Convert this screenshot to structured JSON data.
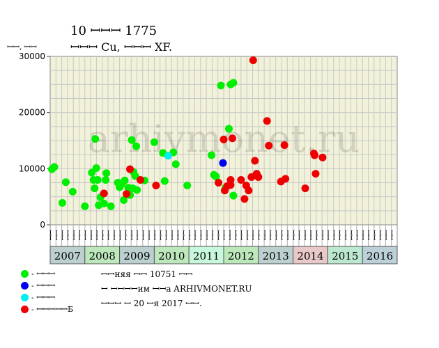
{
  "header": {
    "title_line1": "10 ꟷꟷꟷ 1775",
    "title_line2": "ꟷꟷꟷ Cu, ꟷꟷꟷ XF."
  },
  "y_unit": "ꟷꟷ, ꟷꟷ",
  "watermark": "arhivmonet.ru",
  "legend": [
    {
      "label": "- ꟷꟷꟷ",
      "color": "#00ee00"
    },
    {
      "label": "- ꟷꟷꟷ",
      "color": "#0000ee"
    },
    {
      "label": "- ꟷꟷꟷ",
      "color": "#00eeee"
    },
    {
      "label": "- ꟷꟷꟷꟷꟷБ",
      "color": "#ee0000"
    }
  ],
  "notes": [
    "ꟷꟷняя ꟷꟷ 10751 ꟷꟷ",
    "ꟷ ꟷꟷꟷꟷим ꟷꟷа ARHIVMONET.RU",
    "ꟷꟷꟷ ꟷ 20 ꟷя 2017 ꟷꟷ."
  ],
  "chart_data": {
    "type": "scatter",
    "ylim": [
      0,
      30000
    ],
    "yticks": [
      0,
      10000,
      20000,
      30000
    ],
    "xlim": [
      2007.0,
      2017.0
    ],
    "grid": true,
    "x_unit": "year",
    "years": [
      {
        "label": "2007",
        "color": "#bcd0d0"
      },
      {
        "label": "2008",
        "color": "#bce8bc"
      },
      {
        "label": "2009",
        "color": "#bcd0d0"
      },
      {
        "label": "2010",
        "color": "#bce8bc"
      },
      {
        "label": "2011",
        "color": "#c8f8dc"
      },
      {
        "label": "2012",
        "color": "#bce8bc"
      },
      {
        "label": "2013",
        "color": "#bcd0d0"
      },
      {
        "label": "2014",
        "color": "#e8c8c8"
      },
      {
        "label": "2015",
        "color": "#bce8d0"
      },
      {
        "label": "2016",
        "color": "#bcd0d8"
      }
    ],
    "month_labels": [
      "ꟷꟷ",
      "ꟷꟷ",
      "ꟷꟷ",
      "ꟷꟷ",
      "ꟷꟷ",
      "ꟷꟷ"
    ],
    "series": [
      {
        "name": "- ꟷꟷꟷ",
        "color": "#00ee00",
        "points": [
          [
            2007.05,
            9900
          ],
          [
            2007.12,
            10300
          ],
          [
            2007.35,
            3900
          ],
          [
            2007.45,
            7600
          ],
          [
            2007.65,
            5900
          ],
          [
            2008.0,
            3300
          ],
          [
            2008.2,
            9300
          ],
          [
            2008.25,
            8000
          ],
          [
            2008.28,
            6500
          ],
          [
            2008.3,
            15300
          ],
          [
            2008.33,
            10100
          ],
          [
            2008.37,
            8000
          ],
          [
            2008.4,
            3500
          ],
          [
            2008.45,
            4900
          ],
          [
            2008.55,
            3800
          ],
          [
            2008.6,
            8000
          ],
          [
            2008.62,
            9200
          ],
          [
            2008.75,
            3300
          ],
          [
            2008.95,
            7500
          ],
          [
            2009.0,
            6700
          ],
          [
            2009.05,
            7200
          ],
          [
            2009.12,
            4400
          ],
          [
            2009.15,
            7900
          ],
          [
            2009.25,
            6600
          ],
          [
            2009.3,
            5300
          ],
          [
            2009.35,
            15100
          ],
          [
            2009.38,
            6500
          ],
          [
            2009.4,
            9400
          ],
          [
            2009.45,
            8700
          ],
          [
            2009.48,
            14000
          ],
          [
            2009.5,
            6200
          ],
          [
            2009.72,
            7900
          ],
          [
            2010.0,
            14700
          ],
          [
            2010.25,
            12800
          ],
          [
            2010.3,
            7800
          ],
          [
            2010.55,
            12900
          ],
          [
            2010.62,
            10800
          ],
          [
            2010.95,
            7000
          ],
          [
            2011.65,
            12400
          ],
          [
            2011.72,
            8900
          ],
          [
            2011.78,
            8600
          ],
          [
            2011.92,
            24800
          ],
          [
            2012.05,
            6600
          ],
          [
            2012.15,
            17100
          ],
          [
            2012.2,
            25000
          ],
          [
            2012.28,
            25300
          ],
          [
            2012.28,
            5200
          ]
        ]
      },
      {
        "name": "- ꟷꟷꟷ",
        "color": "#0000ee",
        "points": [
          [
            2011.98,
            11000
          ]
        ]
      },
      {
        "name": "- ꟷꟷꟷ",
        "color": "#00eeee",
        "points": [
          [
            2010.4,
            12300
          ]
        ]
      },
      {
        "name": "- ꟷꟷꟷꟷꟷБ",
        "color": "#ee0000",
        "points": [
          [
            2008.55,
            5600
          ],
          [
            2009.2,
            5500
          ],
          [
            2009.3,
            9900
          ],
          [
            2009.6,
            8000
          ],
          [
            2010.05,
            7000
          ],
          [
            2011.85,
            7500
          ],
          [
            2012.0,
            15200
          ],
          [
            2012.03,
            6100
          ],
          [
            2012.1,
            6900
          ],
          [
            2012.2,
            7100
          ],
          [
            2012.2,
            8000
          ],
          [
            2012.25,
            15400
          ],
          [
            2012.5,
            8000
          ],
          [
            2012.6,
            4600
          ],
          [
            2012.65,
            7000
          ],
          [
            2012.72,
            6100
          ],
          [
            2012.8,
            8500
          ],
          [
            2012.85,
            29300
          ],
          [
            2012.9,
            11400
          ],
          [
            2012.95,
            9100
          ],
          [
            2013.0,
            8500
          ],
          [
            2013.25,
            18500
          ],
          [
            2013.3,
            14100
          ],
          [
            2013.65,
            7700
          ],
          [
            2013.75,
            14200
          ],
          [
            2013.78,
            8200
          ],
          [
            2014.35,
            6500
          ],
          [
            2014.6,
            12700
          ],
          [
            2014.62,
            12400
          ],
          [
            2014.65,
            9100
          ],
          [
            2014.85,
            12000
          ]
        ]
      }
    ]
  }
}
